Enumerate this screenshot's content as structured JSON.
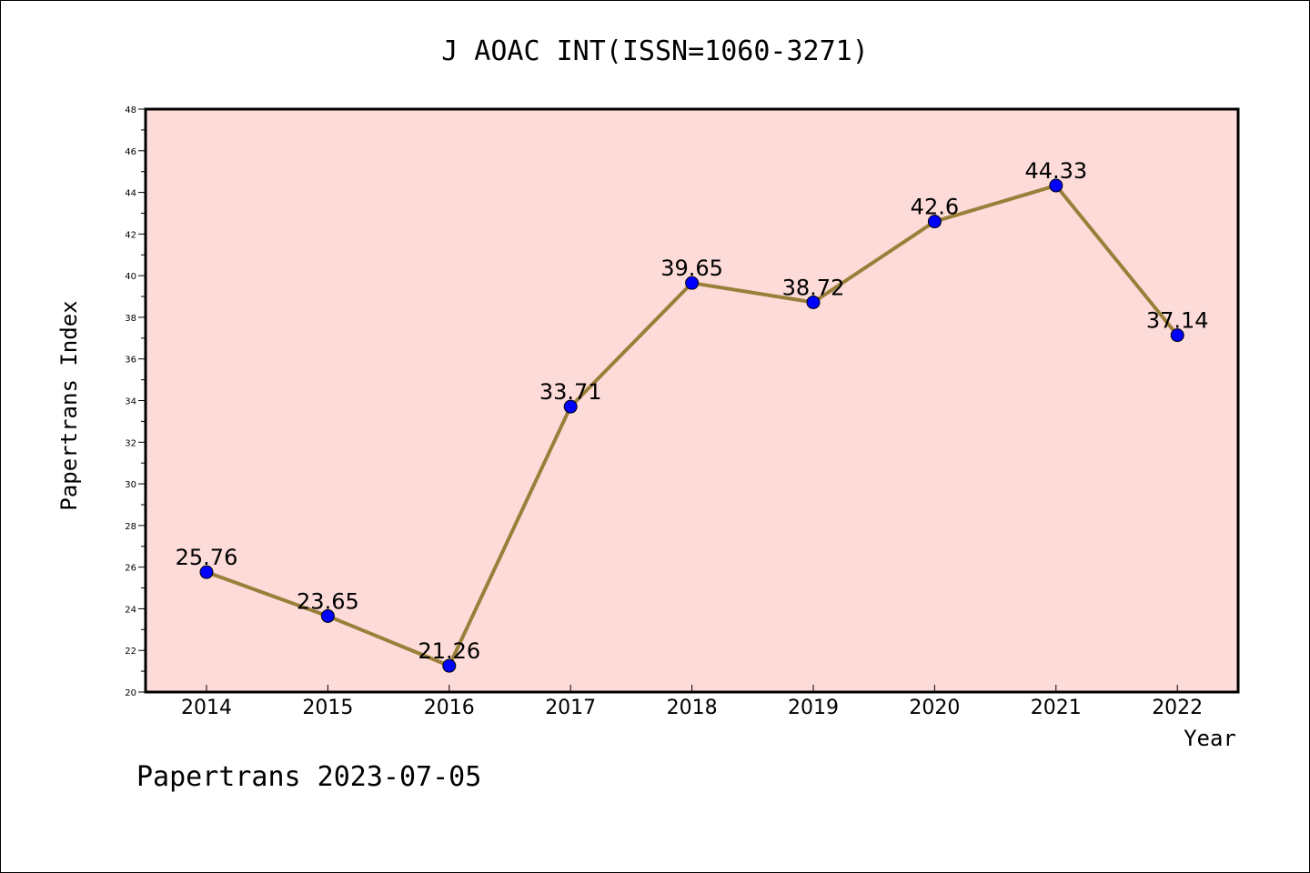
{
  "chart_data": {
    "type": "line",
    "title": "J AOAC INT(ISSN=1060-3271)",
    "xlabel": "Year",
    "ylabel": "Papertrans Index",
    "categories": [
      "2014",
      "2015",
      "2016",
      "2017",
      "2018",
      "2019",
      "2020",
      "2021",
      "2022"
    ],
    "series": [
      {
        "values": [
          25.76,
          23.65,
          21.26,
          33.71,
          39.65,
          38.72,
          42.6,
          44.33,
          37.14
        ]
      }
    ],
    "data_labels": [
      "25.76",
      "23.65",
      "21.26",
      "33.71",
      "39.65",
      "38.72",
      "42.6",
      "44.33",
      "37.14"
    ],
    "yticks": [
      "20",
      "22",
      "24",
      "26",
      "28",
      "30",
      "32",
      "34",
      "36",
      "38",
      "40",
      "42",
      "44",
      "46",
      "48"
    ],
    "ylim": [
      20,
      48
    ],
    "grid": false,
    "colors": {
      "plot_bg": "#fddbd9",
      "line": "#9a7f3a",
      "marker": "#0000ff"
    }
  },
  "footer": "Papertrans 2023-07-05"
}
